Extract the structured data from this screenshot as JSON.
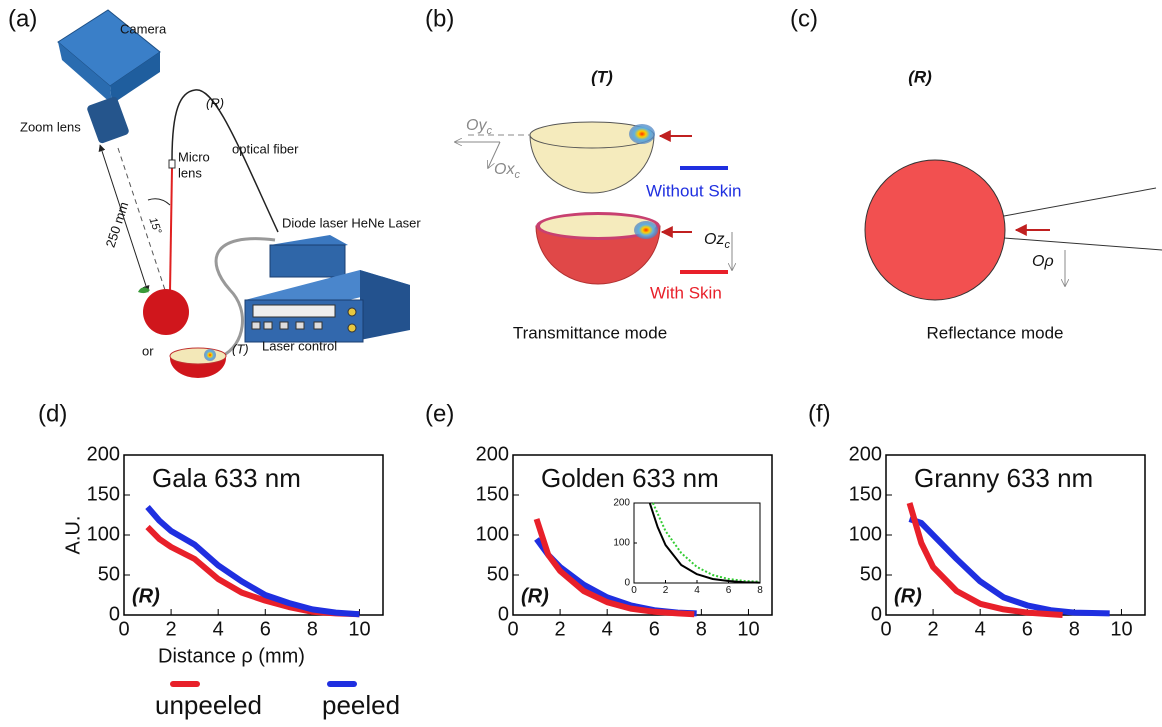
{
  "diagram": {
    "a": {
      "label": "(a)",
      "camera": "Camera",
      "zoom": "Zoom lens",
      "distance": "250 mm",
      "angle": "15°",
      "micro_1": "Micro",
      "micro_2": "lens",
      "r": "(R)",
      "fiber": "optical fiber",
      "laser": "Diode laser HeNe Laser",
      "control": "Laser control",
      "or": "or",
      "t": "(T)"
    },
    "b": {
      "label": "(b)",
      "t": "(T)",
      "oy": {
        "main": "Oy",
        "sub": "c"
      },
      "ox": {
        "main": "Ox",
        "sub": "c"
      },
      "oz": {
        "main": "Oz",
        "sub": "c"
      },
      "without": "Without Skin",
      "with": "With Skin",
      "mode": "Transmittance mode"
    },
    "c": {
      "label": "(c)",
      "r": "(R)",
      "orho": {
        "main": "O",
        "sub": "ρ"
      },
      "mode": "Reflectance mode"
    },
    "d": {
      "label": "(d)"
    },
    "e": {
      "label": "(e)"
    },
    "f": {
      "label": "(f)"
    }
  },
  "chart_data": [
    {
      "type": "line",
      "title": "Gala  633 nm",
      "annotation": "(R)",
      "xlabel": "Distance ρ (mm)",
      "ylabel": "A.U.",
      "xlim": [
        0,
        11
      ],
      "ylim": [
        0,
        200
      ],
      "xticks": [
        0,
        2,
        4,
        6,
        8,
        10
      ],
      "yticks": [
        0,
        50,
        100,
        150,
        200
      ],
      "series": [
        {
          "name": "unpeeled",
          "color": "#e8202a",
          "x": [
            1,
            1.5,
            2,
            3,
            4,
            5,
            6,
            7,
            8,
            9,
            10
          ],
          "values": [
            110,
            95,
            85,
            70,
            45,
            28,
            18,
            10,
            4,
            2,
            1
          ]
        },
        {
          "name": "peeled",
          "color": "#1f2fe0",
          "x": [
            1,
            1.5,
            2,
            3,
            4,
            5,
            6,
            7,
            8,
            9,
            10
          ],
          "values": [
            135,
            118,
            105,
            88,
            62,
            42,
            25,
            15,
            7,
            3,
            1
          ]
        }
      ]
    },
    {
      "type": "line",
      "title": "Golden  633 nm",
      "annotation": "(R)",
      "xlim": [
        0,
        11
      ],
      "ylim": [
        0,
        200
      ],
      "xticks": [
        0,
        2,
        4,
        6,
        8,
        10
      ],
      "yticks": [
        0,
        50,
        100,
        150,
        200
      ],
      "series": [
        {
          "color": "#1f2fe0",
          "x": [
            1,
            1.5,
            2,
            3,
            4,
            5,
            6,
            7,
            7.8
          ],
          "values": [
            95,
            75,
            60,
            38,
            22,
            12,
            6,
            3,
            2
          ]
        },
        {
          "color": "#e8202a",
          "x": [
            1,
            1.5,
            2,
            3,
            4,
            5,
            6,
            7,
            7.7
          ],
          "values": [
            120,
            75,
            55,
            30,
            16,
            8,
            4,
            2,
            1
          ]
        }
      ]
    },
    {
      "type": "line",
      "xlim": [
        0,
        8
      ],
      "ylim": [
        0,
        200
      ],
      "xticks": [
        0,
        2,
        4,
        6,
        8
      ],
      "yticks": [
        0,
        100,
        200
      ],
      "series": [
        {
          "color": "#33cc33",
          "dashed": true,
          "x": [
            1.2,
            2,
            3,
            4,
            5,
            6,
            7,
            8
          ],
          "values": [
            200,
            130,
            75,
            40,
            20,
            10,
            5,
            3
          ]
        },
        {
          "color": "#000000",
          "x": [
            1,
            1.5,
            2,
            3,
            4,
            5,
            6,
            7,
            8
          ],
          "values": [
            200,
            140,
            95,
            45,
            22,
            10,
            5,
            2,
            1
          ]
        }
      ]
    },
    {
      "type": "line",
      "title": "Granny  633 nm",
      "annotation": "(R)",
      "xlim": [
        0,
        11
      ],
      "ylim": [
        0,
        200
      ],
      "xticks": [
        0,
        2,
        4,
        6,
        8,
        10
      ],
      "yticks": [
        0,
        50,
        100,
        150,
        200
      ],
      "series": [
        {
          "color": "#1f2fe0",
          "x": [
            1,
            1.5,
            2,
            3,
            4,
            5,
            6,
            7,
            8,
            9.5
          ],
          "values": [
            120,
            115,
            100,
            70,
            42,
            22,
            12,
            6,
            3,
            2
          ]
        },
        {
          "color": "#e8202a",
          "x": [
            1,
            1.5,
            2,
            3,
            4,
            5,
            6,
            7,
            7.5
          ],
          "values": [
            140,
            90,
            60,
            30,
            14,
            7,
            3,
            1,
            0
          ]
        }
      ]
    }
  ]
}
